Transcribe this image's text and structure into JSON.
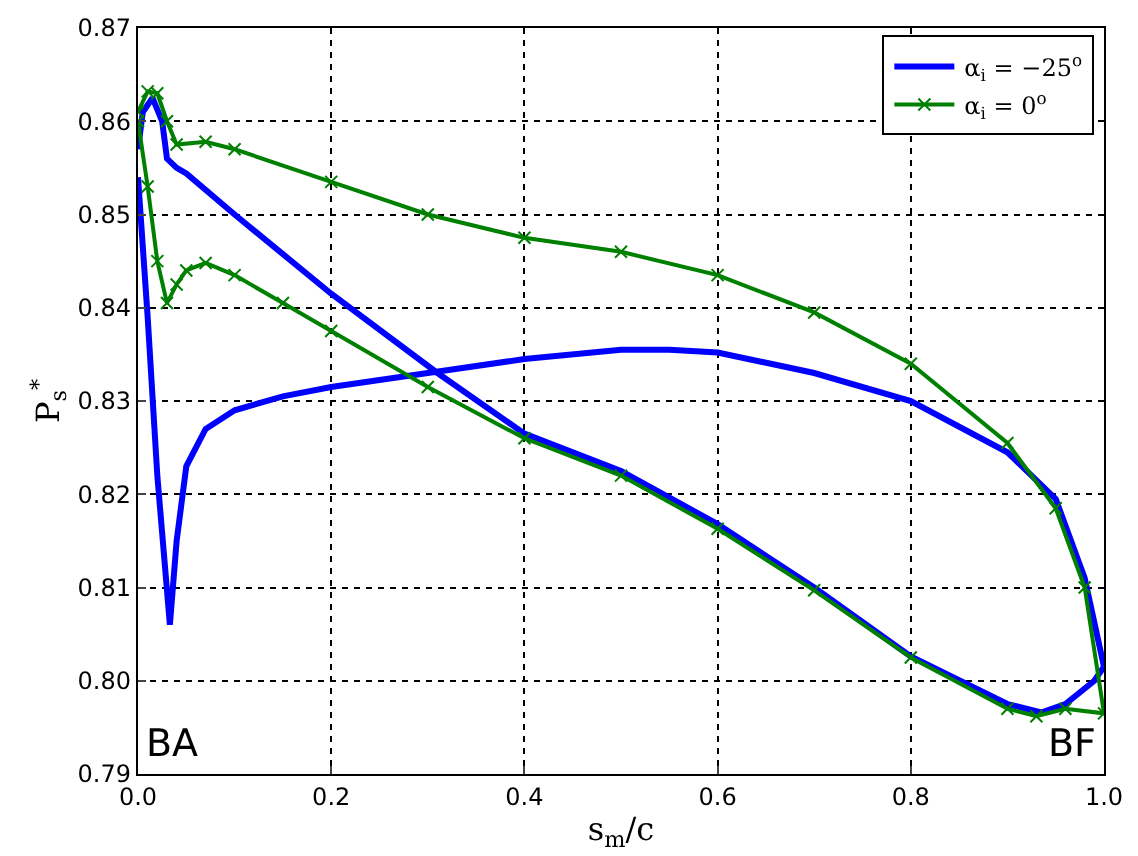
{
  "chart_data": {
    "type": "line",
    "xlabel": "s$_{m}$/c",
    "ylabel": "P$_{s}$$^{*}$",
    "annotations": [
      "BA",
      "BF"
    ],
    "xlim": [
      0,
      1
    ],
    "ylim": [
      0.79,
      0.87
    ],
    "xticks": [
      {
        "value": 0,
        "label": "0.0"
      },
      {
        "value": 0.2,
        "label": "0.2"
      },
      {
        "value": 0.4,
        "label": "0.4"
      },
      {
        "value": 0.6,
        "label": "0.6"
      },
      {
        "value": 0.8,
        "label": "0.8"
      },
      {
        "value": 1,
        "label": "1.0"
      }
    ],
    "yticks": [
      {
        "value": 0.79,
        "label": "0.79"
      },
      {
        "value": 0.8,
        "label": "0.80"
      },
      {
        "value": 0.81,
        "label": "0.81"
      },
      {
        "value": 0.82,
        "label": "0.82"
      },
      {
        "value": 0.83,
        "label": "0.83"
      },
      {
        "value": 0.84,
        "label": "0.84"
      },
      {
        "value": 0.85,
        "label": "0.85"
      },
      {
        "value": 0.86,
        "label": "0.86"
      },
      {
        "value": 0.87,
        "label": "0.87"
      }
    ],
    "grid": true,
    "legend": "top right",
    "line_style": "solid",
    "series": [
      {
        "name": "α$_{i}$ = −25$^{o}$",
        "color": "#0000ff",
        "marker": "none",
        "x": [
          0,
          0.01,
          0.02,
          0.033,
          0.04,
          0.05,
          0.07,
          0.1,
          0.15,
          0.2,
          0.3,
          0.4,
          0.5,
          0.55,
          0.6,
          0.7,
          0.8,
          0.9,
          0.95,
          0.98,
          1,
          0.99,
          0.96,
          0.935,
          0.9,
          0.8,
          0.7,
          0.6,
          0.5,
          0.4,
          0.31,
          0.2,
          0.1,
          0.05,
          0.04,
          0.03,
          0.025,
          0.015,
          0.005,
          0
        ],
        "values": [
          0.854,
          0.839,
          0.822,
          0.806,
          0.815,
          0.823,
          0.827,
          0.829,
          0.8305,
          0.8315,
          0.833,
          0.8345,
          0.8355,
          0.8355,
          0.8352,
          0.833,
          0.83,
          0.8245,
          0.8195,
          0.811,
          0.8015,
          0.8,
          0.7975,
          0.7966,
          0.7975,
          0.8026,
          0.81,
          0.8168,
          0.8225,
          0.8265,
          0.833,
          0.8415,
          0.85,
          0.8544,
          0.855,
          0.856,
          0.86,
          0.8625,
          0.861,
          0.857
        ]
      },
      {
        "name": "α$_{i}$ = 0$^{o}$",
        "color": "#008000",
        "marker": "cross",
        "x": [
          0,
          0.01,
          0.02,
          0.03,
          0.04,
          0.05,
          0.07,
          0.1,
          0.15,
          0.2,
          0.3,
          0.4,
          0.5,
          0.6,
          0.7,
          0.8,
          0.9,
          0.93,
          0.96,
          1,
          0.98,
          0.95,
          0.9,
          0.8,
          0.7,
          0.6,
          0.5,
          0.4,
          0.3,
          0.2,
          0.1,
          0.07,
          0.04,
          0.03,
          0.02,
          0.01,
          0
        ],
        "values": [
          0.86,
          0.853,
          0.845,
          0.8405,
          0.8425,
          0.844,
          0.8448,
          0.8435,
          0.8405,
          0.8375,
          0.8315,
          0.826,
          0.822,
          0.8163,
          0.8097,
          0.8025,
          0.797,
          0.7962,
          0.797,
          0.7965,
          0.81,
          0.8185,
          0.8255,
          0.834,
          0.8395,
          0.8435,
          0.846,
          0.8475,
          0.85,
          0.8535,
          0.857,
          0.8578,
          0.8575,
          0.86,
          0.863,
          0.8632,
          0.861
        ]
      }
    ]
  }
}
